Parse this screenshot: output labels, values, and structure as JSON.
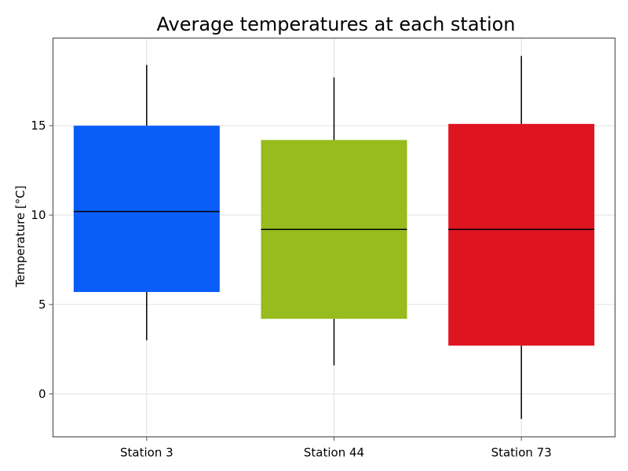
{
  "chart_data": {
    "type": "box",
    "title": "Average temperatures at each station",
    "xlabel": "",
    "ylabel": "Temperature [°C]",
    "ylim": [
      -2.4,
      19.9
    ],
    "yticks": [
      0,
      5,
      10,
      15
    ],
    "grid": true,
    "categories": [
      "Station 3",
      "Station 44",
      "Station 73"
    ],
    "boxes": [
      {
        "category": "Station 3",
        "whisker_low": 3.0,
        "q1": 5.7,
        "median": 10.2,
        "q3": 15.0,
        "whisker_high": 18.4,
        "color": "#0a5ef8"
      },
      {
        "category": "Station 44",
        "whisker_low": 1.6,
        "q1": 4.2,
        "median": 9.2,
        "q3": 14.2,
        "whisker_high": 17.7,
        "color": "#98bb1d"
      },
      {
        "category": "Station 73",
        "whisker_low": -1.4,
        "q1": 2.7,
        "median": 9.2,
        "q3": 15.1,
        "whisker_high": 18.9,
        "color": "#de1420"
      }
    ]
  }
}
